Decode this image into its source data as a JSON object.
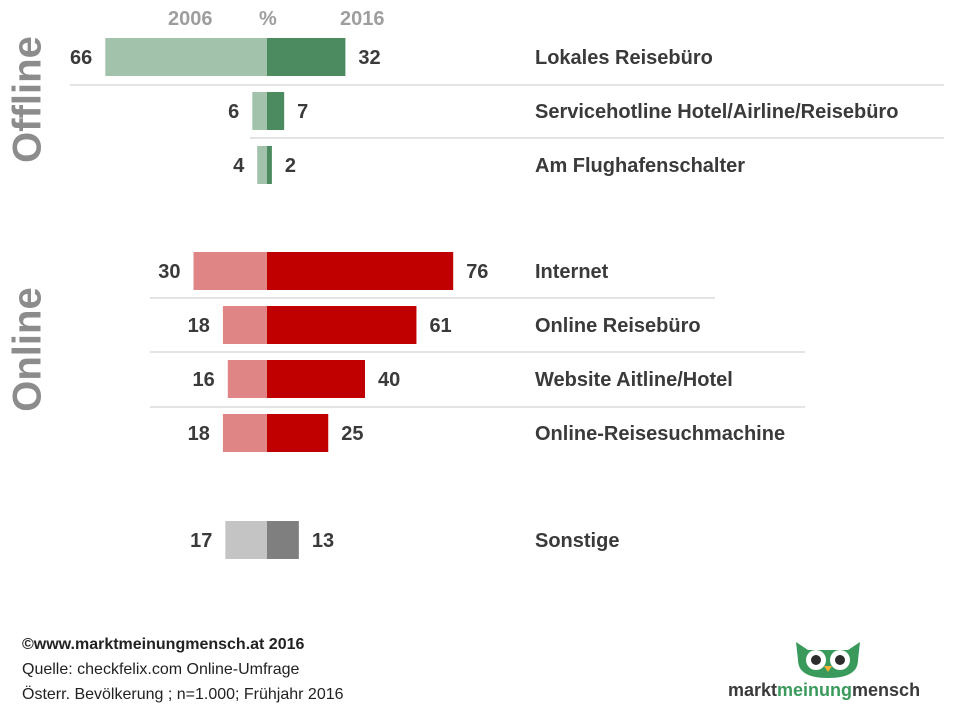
{
  "header": {
    "left_year": "2006",
    "unit": "%",
    "right_year": "2016"
  },
  "groups": {
    "offline": "Offline",
    "online": "Online"
  },
  "chart_data": {
    "type": "bar",
    "subtype": "diverging-horizontal",
    "categories": [
      "Lokales Reisebüro",
      "Servicehotline Hotel/Airline/Reisebüro",
      "Am Flughafenschalter",
      "Internet",
      "Online Reisebüro",
      "Website Aitline/Hotel",
      "Online-Reisesuchmachine",
      "Sonstige"
    ],
    "category_groups": [
      "Offline",
      "Offline",
      "Offline",
      "Online",
      "Online",
      "Online",
      "Online",
      ""
    ],
    "series": [
      {
        "name": "2006",
        "values": [
          66,
          6,
          4,
          30,
          18,
          16,
          18,
          17
        ]
      },
      {
        "name": "2016",
        "values": [
          32,
          7,
          2,
          76,
          61,
          40,
          25,
          13
        ]
      }
    ],
    "unit": "%",
    "colors": {
      "offline_2006": "#a3c2ab",
      "offline_2016": "#4c8a5f",
      "online_2006": "#e08585",
      "online_2016": "#c00000",
      "other_2006": "#c4c4c4",
      "other_2016": "#7f7f7f",
      "separator": "#c8c8c8"
    },
    "legend": "none",
    "grid": false
  },
  "footer": {
    "copyright": "©www.marktmeinungmensch.at 2016",
    "source": "Quelle: checkfelix.com Online-Umfrage",
    "sample": "Österr. Bevölkerung ; n=1.000; Frühjahr 2016"
  },
  "logo": {
    "part1": "markt",
    "part2": "meinung",
    "part3": "mensch"
  }
}
